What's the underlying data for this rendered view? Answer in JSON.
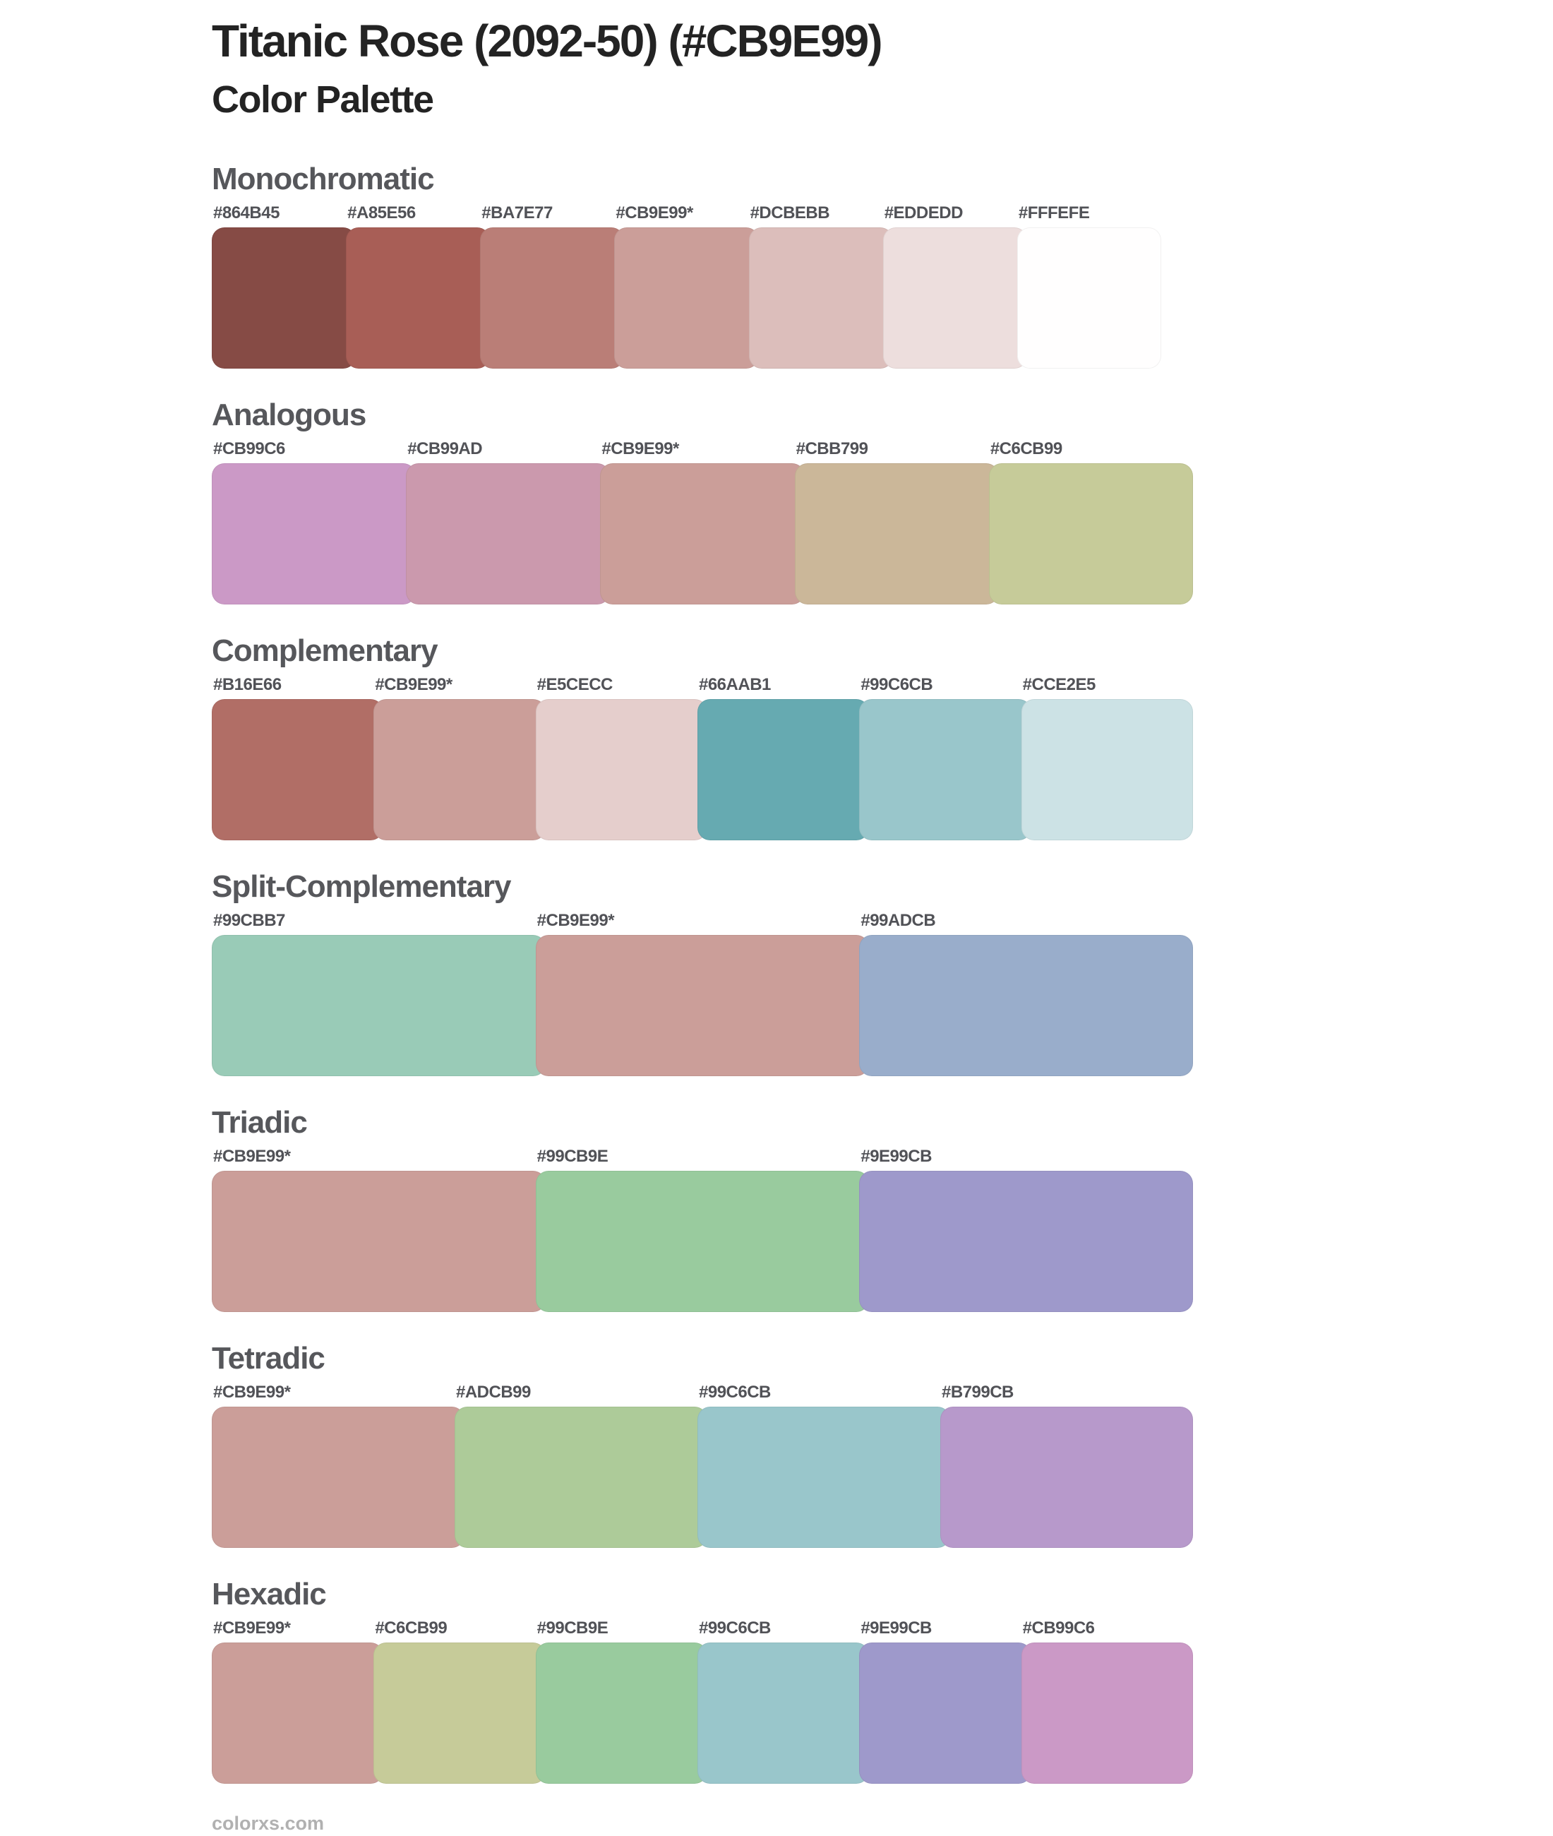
{
  "page": {
    "title": "Titanic Rose (2092-50) (#CB9E99)",
    "subtitle": "Color Palette",
    "footer": "colorxs.com"
  },
  "theme": {
    "background": "#ffffff",
    "title_color": "#232323",
    "heading_color": "#56575b",
    "label_color": "#515257",
    "footer_color": "#b1b1b1",
    "base_color": "#CB9E99"
  },
  "sections": [
    {
      "name": "Monochromatic",
      "colors": [
        {
          "label": "#864B45",
          "hex": "#864B45"
        },
        {
          "label": "#A85E56",
          "hex": "#A85E56"
        },
        {
          "label": "#BA7E77",
          "hex": "#BA7E77"
        },
        {
          "label": "#CB9E99*",
          "hex": "#CB9E99"
        },
        {
          "label": "#DCBEBB",
          "hex": "#DCBEBB"
        },
        {
          "label": "#EDDEDD",
          "hex": "#EDDEDD"
        },
        {
          "label": "#FFFEFE",
          "hex": "#FFFEFE"
        }
      ]
    },
    {
      "name": "Analogous",
      "colors": [
        {
          "label": "#CB99C6",
          "hex": "#CB99C6"
        },
        {
          "label": "#CB99AD",
          "hex": "#CB99AD"
        },
        {
          "label": "#CB9E99*",
          "hex": "#CB9E99"
        },
        {
          "label": "#CBB799",
          "hex": "#CBB799"
        },
        {
          "label": "#C6CB99",
          "hex": "#C6CB99"
        }
      ]
    },
    {
      "name": "Complementary",
      "colors": [
        {
          "label": "#B16E66",
          "hex": "#B16E66"
        },
        {
          "label": "#CB9E99*",
          "hex": "#CB9E99"
        },
        {
          "label": "#E5CECC",
          "hex": "#E5CECC"
        },
        {
          "label": "#66AAB1",
          "hex": "#66AAB1"
        },
        {
          "label": "#99C6CB",
          "hex": "#99C6CB"
        },
        {
          "label": "#CCE2E5",
          "hex": "#CCE2E5"
        }
      ]
    },
    {
      "name": "Split-Complementary",
      "colors": [
        {
          "label": "#99CBB7",
          "hex": "#99CBB7"
        },
        {
          "label": "#CB9E99*",
          "hex": "#CB9E99"
        },
        {
          "label": "#99ADCB",
          "hex": "#99ADCB"
        }
      ]
    },
    {
      "name": "Triadic",
      "colors": [
        {
          "label": "#CB9E99*",
          "hex": "#CB9E99"
        },
        {
          "label": "#99CB9E",
          "hex": "#99CB9E"
        },
        {
          "label": "#9E99CB",
          "hex": "#9E99CB"
        }
      ]
    },
    {
      "name": "Tetradic",
      "colors": [
        {
          "label": "#CB9E99*",
          "hex": "#CB9E99"
        },
        {
          "label": "#ADCB99",
          "hex": "#ADCB99"
        },
        {
          "label": "#99C6CB",
          "hex": "#99C6CB"
        },
        {
          "label": "#B799CB",
          "hex": "#B799CB"
        }
      ]
    },
    {
      "name": "Hexadic",
      "colors": [
        {
          "label": "#CB9E99*",
          "hex": "#CB9E99"
        },
        {
          "label": "#C6CB99",
          "hex": "#C6CB99"
        },
        {
          "label": "#99CB9E",
          "hex": "#99CB9E"
        },
        {
          "label": "#99C6CB",
          "hex": "#99C6CB"
        },
        {
          "label": "#9E99CB",
          "hex": "#9E99CB"
        },
        {
          "label": "#CB99C6",
          "hex": "#CB99C6"
        }
      ]
    }
  ]
}
